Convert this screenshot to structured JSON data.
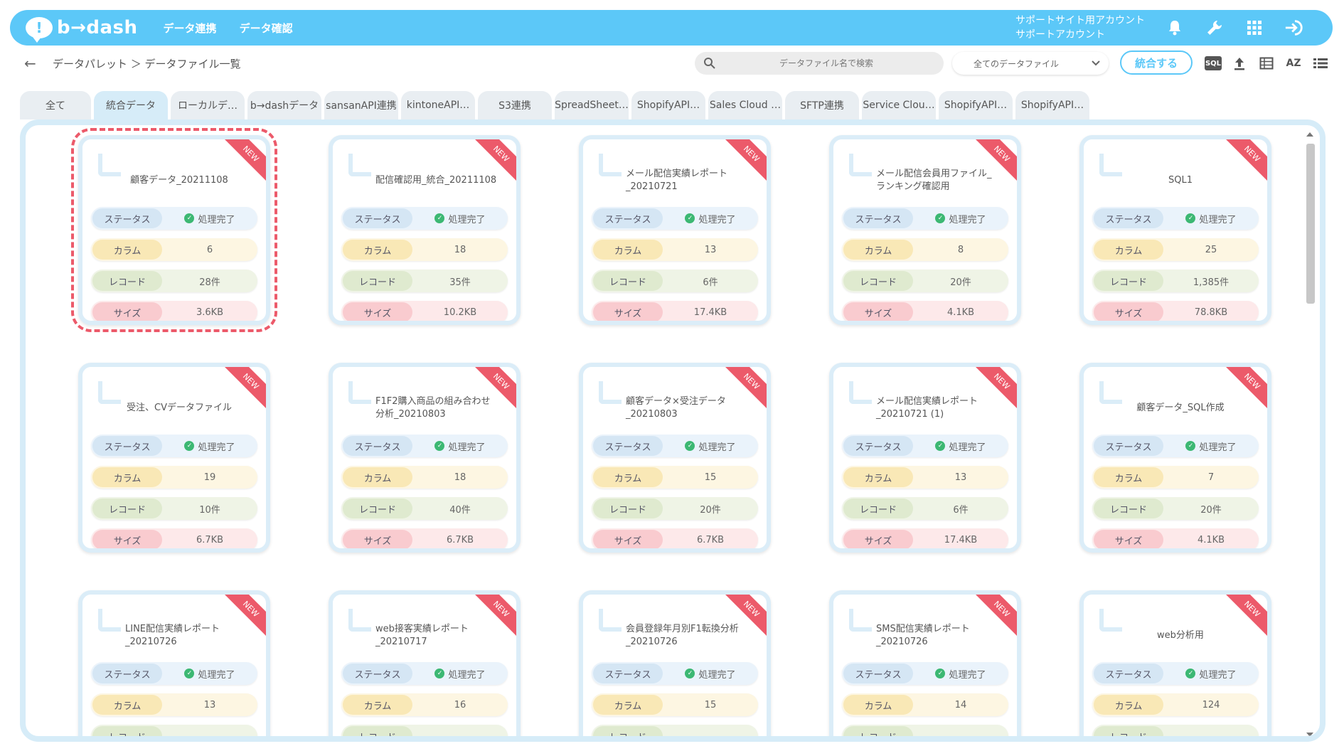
{
  "header": {
    "logo_mark": "!",
    "logo_text": "b→dash",
    "nav": [
      "データ連携",
      "データ確認"
    ],
    "account_line1": "サポートサイト用アカウント",
    "account_line2": "サポートアカウント",
    "icons": [
      "bell-icon",
      "wrench-icon",
      "grid-apps-icon",
      "logout-icon"
    ]
  },
  "subbar": {
    "back_icon": "←",
    "breadcrumb": "データパレット ＞ データファイル一覧",
    "search_placeholder": "データファイル名で検索",
    "filter_value": "全てのデータファイル",
    "merge_label": "統合する",
    "sql_label": "SQL",
    "sort_label": "AZ"
  },
  "tabs": [
    {
      "label": "全て",
      "w": 100
    },
    {
      "label": "統合データ",
      "w": 104
    },
    {
      "label": "ローカルデ…",
      "w": 104
    },
    {
      "label": "b→dashデータ",
      "w": 104
    },
    {
      "label": "sansanAPI連携",
      "w": 104
    },
    {
      "label": "kintoneAPI…",
      "w": 104
    },
    {
      "label": "S3連携",
      "w": 104
    },
    {
      "label": "SpreadSheet…",
      "w": 104
    },
    {
      "label": "ShopifyAPI…",
      "w": 104
    },
    {
      "label": "Sales Cloud …",
      "w": 104
    },
    {
      "label": "SFTP連携",
      "w": 104
    },
    {
      "label": "Service Clou…",
      "w": 104
    },
    {
      "label": "ShopifyAPI…",
      "w": 104
    },
    {
      "label": "ShopifyAPI…",
      "w": 104
    }
  ],
  "labels": {
    "status": "ステータス",
    "column": "カラム",
    "record": "レコード",
    "size": "サイズ",
    "new": "NEW"
  },
  "cards": [
    {
      "name": "顧客データ_20211108",
      "status": "処理完了",
      "columns": "6",
      "records": "28件",
      "size": "3.6KB"
    },
    {
      "name": "配信確認用_統合_20211108",
      "status": "処理完了",
      "columns": "18",
      "records": "35件",
      "size": "10.2KB"
    },
    {
      "name": "メール配信実績レポート_20210721",
      "status": "処理完了",
      "columns": "13",
      "records": "6件",
      "size": "17.4KB"
    },
    {
      "name": "メール配信会員用ファイル_ランキング確認用",
      "status": "処理完了",
      "columns": "8",
      "records": "20件",
      "size": "4.1KB"
    },
    {
      "name": "SQL1",
      "status": "処理完了",
      "columns": "25",
      "records": "1,385件",
      "size": "78.8KB"
    },
    {
      "name": "受注、CVデータファイル",
      "status": "処理完了",
      "columns": "19",
      "records": "10件",
      "size": "6.7KB"
    },
    {
      "name": "F1F2購入商品の組み合わせ分析_20210803",
      "status": "処理完了",
      "columns": "18",
      "records": "40件",
      "size": "6.7KB"
    },
    {
      "name": "顧客データ×受注データ_20210803",
      "status": "処理完了",
      "columns": "15",
      "records": "20件",
      "size": "6.7KB"
    },
    {
      "name": "メール配信実績レポート_20210721 (1)",
      "status": "処理完了",
      "columns": "13",
      "records": "6件",
      "size": "17.4KB"
    },
    {
      "name": "顧客データ_SQL作成",
      "status": "処理完了",
      "columns": "7",
      "records": "20件",
      "size": "4.1KB"
    },
    {
      "name": "LINE配信実績レポート_20210726",
      "status": "処理完了",
      "columns": "13",
      "records": "",
      "size": ""
    },
    {
      "name": "web接客実績レポート_20210717",
      "status": "処理完了",
      "columns": "16",
      "records": "",
      "size": ""
    },
    {
      "name": "会員登録年月別F1転換分析_20210726",
      "status": "処理完了",
      "columns": "15",
      "records": "",
      "size": ""
    },
    {
      "name": "SMS配信実績レポート_20210726",
      "status": "処理完了",
      "columns": "14",
      "records": "",
      "size": ""
    },
    {
      "name": "web分析用",
      "status": "処理完了",
      "columns": "124",
      "records": "",
      "size": ""
    }
  ]
}
